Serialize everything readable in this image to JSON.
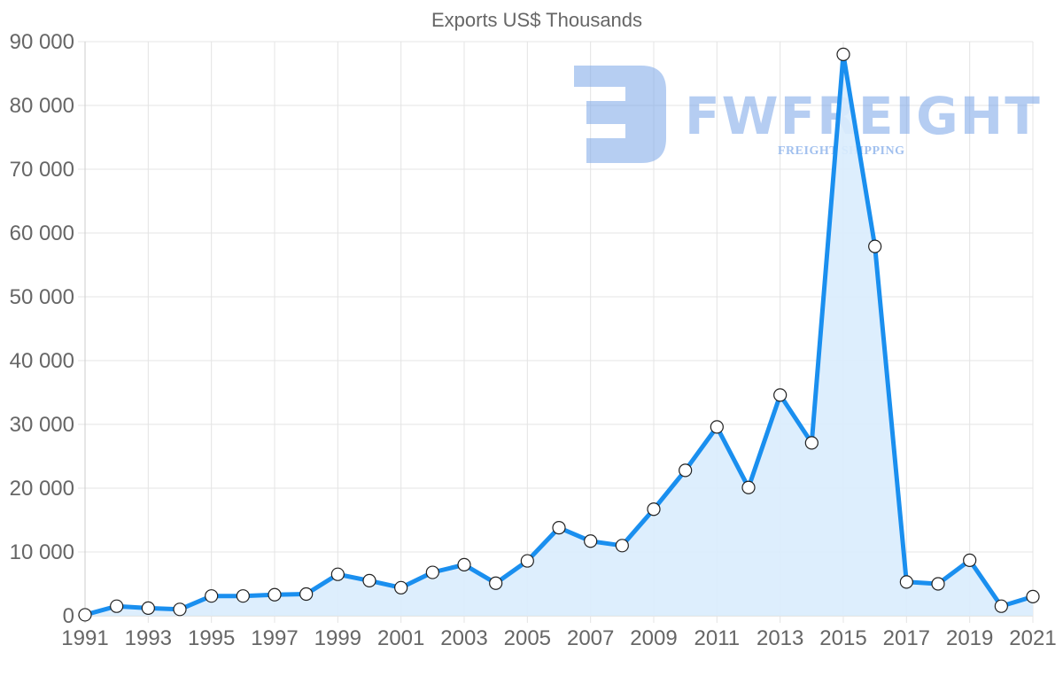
{
  "chart_data": {
    "type": "line",
    "title": "Exports US$ Thousands",
    "xlabel": "",
    "ylabel": "",
    "ylim": [
      0,
      90000
    ],
    "grid": true,
    "fill": true,
    "legend": null,
    "y_ticks": [
      "0",
      "10 000",
      "20 000",
      "30 000",
      "40 000",
      "50 000",
      "60 000",
      "70 000",
      "80 000",
      "90 000"
    ],
    "x_tick_labels": [
      "1991",
      "1993",
      "1995",
      "1997",
      "1999",
      "2001",
      "2003",
      "2005",
      "2007",
      "2009",
      "2011",
      "2013",
      "2015",
      "2017",
      "2019",
      "2021"
    ],
    "categories": [
      1991,
      1992,
      1993,
      1994,
      1995,
      1996,
      1997,
      1998,
      1999,
      2000,
      2001,
      2002,
      2003,
      2004,
      2005,
      2006,
      2007,
      2008,
      2009,
      2010,
      2011,
      2012,
      2013,
      2014,
      2015,
      2016,
      2017,
      2018,
      2019,
      2020,
      2021
    ],
    "series": [
      {
        "name": "Exports US$ Thousands",
        "values": [
          150,
          1500,
          1200,
          1000,
          3100,
          3100,
          3300,
          3400,
          6500,
          5500,
          4400,
          6800,
          8000,
          5100,
          8600,
          13800,
          11700,
          11000,
          16700,
          22800,
          29600,
          20100,
          34600,
          27100,
          88000,
          57900,
          5300,
          5000,
          8700,
          1500,
          3000
        ]
      }
    ],
    "colors": {
      "line": "#1a8fef",
      "fill": "#d9ecfd",
      "point_fill": "#ffffff",
      "point_stroke": "#222222",
      "text": "#666666",
      "grid": "#e4e4e4"
    }
  },
  "watermark": {
    "brand": "FWFREIGHT",
    "tagline": "FREIGHT SHIPPING"
  }
}
